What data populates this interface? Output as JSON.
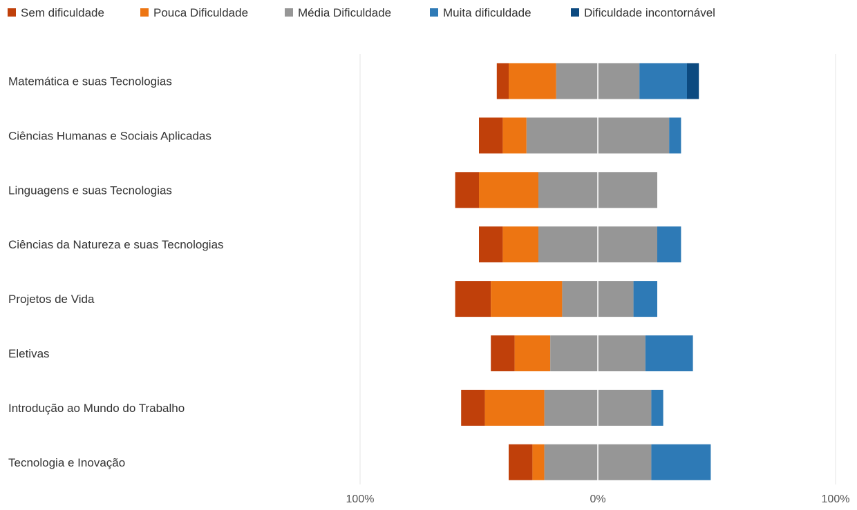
{
  "chart_data": {
    "type": "bar",
    "subtype": "diverging-stacked-horizontal",
    "title": "",
    "xlabel": "",
    "ylabel": "",
    "categories": [
      "Matemática e suas Tecnologias",
      "Ciências Humanas e Sociais Aplicadas",
      "Linguagens e suas Tecnologias",
      "Ciências da Natureza e suas Tecnologias",
      "Projetos de Vida",
      "Eletivas",
      "Introdução ao Mundo do Trabalho",
      "Tecnologia e Inovação"
    ],
    "series": [
      {
        "name": "Sem dificuldade",
        "color": "#c0400a",
        "values": [
          5,
          10,
          10,
          10,
          15,
          10,
          10,
          10
        ]
      },
      {
        "name": "Pouca Dificuldade",
        "color": "#ed7512",
        "values": [
          20,
          10,
          25,
          15,
          30,
          15,
          25,
          5
        ]
      },
      {
        "name": "Média Dificuldade",
        "color": "#969696",
        "values": [
          35,
          60,
          50,
          50,
          30,
          40,
          45,
          45
        ]
      },
      {
        "name": "Muita dificuldade",
        "color": "#2e7ab6",
        "values": [
          20,
          5,
          0,
          10,
          10,
          20,
          5,
          25
        ]
      },
      {
        "name": "Dificuldade incontornável",
        "color": "#0c4a80",
        "values": [
          5,
          0,
          0,
          0,
          0,
          0,
          0,
          0
        ]
      }
    ],
    "center_rule": "negative side = Sem dificuldade + Pouca Dificuldade + half of Média Dificuldade",
    "xlim": [
      -100,
      100
    ],
    "xticks": [
      {
        "value": -100,
        "label": "100%"
      },
      {
        "value": 0,
        "label": "0%"
      },
      {
        "value": 100,
        "label": "100%"
      }
    ],
    "grid": true,
    "legend": "top-left"
  }
}
